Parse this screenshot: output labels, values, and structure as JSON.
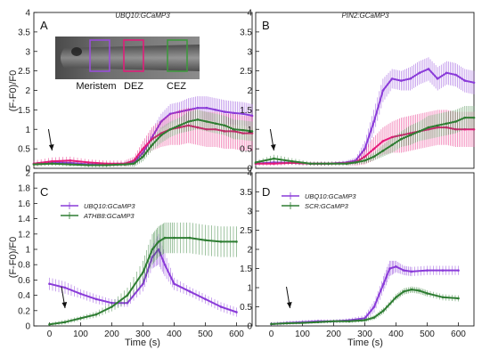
{
  "chart_data": [
    {
      "type": "line",
      "panel": "A",
      "title": "UBQ10:GCaMP3",
      "ylabel": "(F-F0)/F0",
      "ylim": [
        0,
        4
      ],
      "yticks": [
        "0",
        "0.5",
        "1",
        "1.5",
        "2",
        "2.5",
        "3",
        "3.5",
        "4"
      ],
      "xlim": [
        0,
        600
      ],
      "arrow_at": 50,
      "inset_labels": [
        "Meristem",
        "DEZ",
        "CEZ"
      ],
      "series": [
        {
          "color": "#8a3bd9",
          "x": [
            0,
            50,
            100,
            150,
            200,
            250,
            275,
            300,
            325,
            350,
            375,
            400,
            425,
            450,
            475,
            500,
            525,
            550,
            575,
            600
          ],
          "y": [
            0.12,
            0.15,
            0.14,
            0.1,
            0.1,
            0.12,
            0.15,
            0.4,
            0.8,
            1.2,
            1.4,
            1.45,
            1.5,
            1.55,
            1.55,
            1.5,
            1.45,
            1.42,
            1.4,
            1.35
          ],
          "err": [
            0.05,
            0.05,
            0.05,
            0.05,
            0.05,
            0.05,
            0.08,
            0.15,
            0.2,
            0.2,
            0.25,
            0.25,
            0.3,
            0.3,
            0.3,
            0.3,
            0.3,
            0.3,
            0.3,
            0.3
          ]
        },
        {
          "color": "#e6197a",
          "x": [
            0,
            50,
            100,
            150,
            200,
            250,
            275,
            300,
            325,
            350,
            375,
            400,
            425,
            450,
            475,
            500,
            525,
            550,
            575,
            600
          ],
          "y": [
            0.12,
            0.18,
            0.2,
            0.15,
            0.12,
            0.12,
            0.2,
            0.5,
            0.75,
            0.9,
            1.0,
            1.05,
            1.1,
            1.05,
            1.0,
            1.0,
            0.95,
            0.95,
            0.9,
            0.9
          ],
          "err": [
            0.08,
            0.1,
            0.1,
            0.08,
            0.08,
            0.08,
            0.1,
            0.2,
            0.3,
            0.35,
            0.4,
            0.45,
            0.45,
            0.45,
            0.45,
            0.45,
            0.45,
            0.45,
            0.45,
            0.45
          ]
        },
        {
          "color": "#2e7d32",
          "x": [
            0,
            50,
            100,
            150,
            200,
            250,
            275,
            300,
            325,
            350,
            375,
            400,
            425,
            450,
            475,
            500,
            525,
            550,
            575,
            600
          ],
          "y": [
            0.1,
            0.12,
            0.1,
            0.08,
            0.08,
            0.1,
            0.12,
            0.3,
            0.6,
            0.85,
            1.0,
            1.1,
            1.2,
            1.25,
            1.2,
            1.15,
            1.1,
            1.0,
            0.98,
            0.95
          ],
          "err": [
            0.05,
            0.05,
            0.05,
            0.05,
            0.05,
            0.05,
            0.08,
            0.12,
            0.15,
            0.2,
            0.2,
            0.2,
            0.25,
            0.25,
            0.25,
            0.25,
            0.25,
            0.25,
            0.25,
            0.25
          ]
        }
      ]
    },
    {
      "type": "line",
      "panel": "B",
      "title": "PIN2:GCaMP3",
      "ylabel": "",
      "ylim": [
        0,
        4
      ],
      "yticks": [
        "0",
        "0.5",
        "1",
        "1.5",
        "2",
        "2.5",
        "3",
        "3.5",
        "4"
      ],
      "xlim": [
        0,
        600
      ],
      "arrow_at": 50,
      "series": [
        {
          "color": "#8a3bd9",
          "x": [
            0,
            50,
            100,
            150,
            200,
            250,
            275,
            300,
            325,
            350,
            375,
            400,
            425,
            450,
            475,
            500,
            525,
            550,
            575,
            600
          ],
          "y": [
            0.12,
            0.15,
            0.14,
            0.12,
            0.12,
            0.15,
            0.2,
            0.5,
            1.2,
            2.0,
            2.3,
            2.25,
            2.3,
            2.45,
            2.55,
            2.3,
            2.45,
            2.4,
            2.25,
            2.2
          ],
          "err": [
            0.05,
            0.05,
            0.05,
            0.05,
            0.05,
            0.05,
            0.08,
            0.2,
            0.3,
            0.3,
            0.25,
            0.25,
            0.3,
            0.3,
            0.3,
            0.3,
            0.3,
            0.3,
            0.3,
            0.3
          ]
        },
        {
          "color": "#e6197a",
          "x": [
            0,
            50,
            100,
            150,
            200,
            250,
            275,
            300,
            325,
            350,
            375,
            400,
            425,
            450,
            475,
            500,
            525,
            550,
            575,
            600
          ],
          "y": [
            0.12,
            0.12,
            0.14,
            0.12,
            0.12,
            0.13,
            0.15,
            0.3,
            0.5,
            0.7,
            0.8,
            0.85,
            0.9,
            0.95,
            1.0,
            1.05,
            1.05,
            1.0,
            1.0,
            1.0
          ],
          "err": [
            0.05,
            0.05,
            0.05,
            0.05,
            0.05,
            0.05,
            0.08,
            0.2,
            0.3,
            0.35,
            0.4,
            0.45,
            0.45,
            0.45,
            0.45,
            0.45,
            0.45,
            0.45,
            0.45,
            0.45
          ]
        },
        {
          "color": "#2e7d32",
          "x": [
            0,
            50,
            100,
            150,
            200,
            250,
            275,
            300,
            325,
            350,
            375,
            400,
            425,
            450,
            475,
            500,
            525,
            550,
            575,
            600
          ],
          "y": [
            0.15,
            0.25,
            0.18,
            0.12,
            0.12,
            0.12,
            0.15,
            0.2,
            0.3,
            0.45,
            0.6,
            0.75,
            0.85,
            0.95,
            1.05,
            1.1,
            1.15,
            1.2,
            1.3,
            1.3
          ],
          "err": [
            0.05,
            0.1,
            0.08,
            0.05,
            0.05,
            0.05,
            0.05,
            0.08,
            0.1,
            0.15,
            0.2,
            0.2,
            0.25,
            0.25,
            0.3,
            0.3,
            0.3,
            0.3,
            0.3,
            0.3
          ]
        }
      ]
    },
    {
      "type": "line",
      "panel": "C",
      "title": "",
      "ylabel": "(F-F0)/F0",
      "xlabel": "Time (s)",
      "ylim": [
        0,
        2
      ],
      "yticks": [
        "0",
        "0.2",
        "0.4",
        "0.6",
        "0.8",
        "1",
        "1.2",
        "1.4",
        "1.6",
        "1.8",
        "2"
      ],
      "xlim": [
        -50,
        650
      ],
      "xticks": [
        "0",
        "100",
        "200",
        "300",
        "400",
        "500",
        "600"
      ],
      "arrow_at": 50,
      "series": [
        {
          "name": "UBQ10:GCaMP3",
          "color": "#8a3bd9",
          "x": [
            0,
            50,
            100,
            150,
            200,
            250,
            300,
            330,
            350,
            370,
            400,
            450,
            500,
            550,
            600
          ],
          "y": [
            0.55,
            0.5,
            0.42,
            0.35,
            0.3,
            0.3,
            0.55,
            0.9,
            1.0,
            0.8,
            0.55,
            0.45,
            0.35,
            0.25,
            0.18
          ],
          "err": [
            0.08,
            0.08,
            0.06,
            0.06,
            0.05,
            0.05,
            0.1,
            0.15,
            0.2,
            0.15,
            0.08,
            0.06,
            0.06,
            0.06,
            0.06
          ]
        },
        {
          "name": "ATHB8:GCaMP3",
          "color": "#2e7d32",
          "x": [
            0,
            50,
            100,
            150,
            200,
            250,
            300,
            330,
            350,
            370,
            400,
            450,
            500,
            550,
            600
          ],
          "y": [
            0.02,
            0.05,
            0.1,
            0.15,
            0.25,
            0.4,
            0.7,
            1.0,
            1.1,
            1.15,
            1.15,
            1.15,
            1.12,
            1.1,
            1.1
          ],
          "err": [
            0.02,
            0.03,
            0.03,
            0.04,
            0.06,
            0.1,
            0.15,
            0.2,
            0.2,
            0.2,
            0.2,
            0.2,
            0.2,
            0.2,
            0.2
          ]
        }
      ]
    },
    {
      "type": "line",
      "panel": "D",
      "title": "",
      "ylabel": "",
      "xlabel": "Time (s)",
      "ylim": [
        0,
        4
      ],
      "yticks": [
        "0",
        "0.5",
        "1",
        "1.5",
        "2",
        "2.5",
        "3",
        "3.5",
        "4"
      ],
      "xlim": [
        -50,
        650
      ],
      "xticks": [
        "0",
        "100",
        "200",
        "300",
        "400",
        "500",
        "600"
      ],
      "arrow_at": 60,
      "series": [
        {
          "name": "UBQ10:GCaMP3",
          "color": "#8a3bd9",
          "x": [
            0,
            50,
            100,
            150,
            200,
            250,
            300,
            330,
            360,
            380,
            400,
            425,
            450,
            500,
            550,
            600
          ],
          "y": [
            0.05,
            0.08,
            0.1,
            0.12,
            0.12,
            0.15,
            0.2,
            0.5,
            1.1,
            1.5,
            1.55,
            1.45,
            1.42,
            1.45,
            1.45,
            1.45
          ],
          "err": [
            0.05,
            0.05,
            0.05,
            0.05,
            0.05,
            0.05,
            0.08,
            0.15,
            0.2,
            0.2,
            0.15,
            0.12,
            0.12,
            0.12,
            0.12,
            0.12
          ]
        },
        {
          "name": "SCR:GCaMP3",
          "color": "#2e7d32",
          "x": [
            0,
            50,
            100,
            150,
            200,
            250,
            300,
            330,
            360,
            400,
            425,
            450,
            475,
            500,
            550,
            600
          ],
          "y": [
            0.05,
            0.07,
            0.08,
            0.1,
            0.12,
            0.12,
            0.15,
            0.22,
            0.4,
            0.75,
            0.9,
            0.95,
            0.92,
            0.85,
            0.75,
            0.72
          ],
          "err": [
            0.03,
            0.03,
            0.03,
            0.03,
            0.04,
            0.04,
            0.05,
            0.06,
            0.08,
            0.08,
            0.08,
            0.08,
            0.08,
            0.08,
            0.08,
            0.08
          ]
        }
      ]
    }
  ]
}
